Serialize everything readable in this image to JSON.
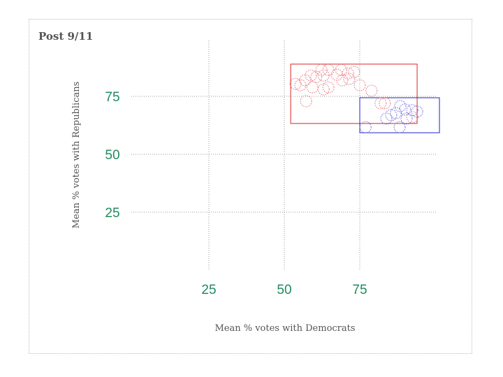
{
  "chart_data": {
    "type": "scatter",
    "title": "Post 9/11",
    "xlabel": "Mean % votes with Democrats",
    "ylabel": "Mean % votes with Republicans",
    "xlim": [
      0,
      100
    ],
    "ylim": [
      0,
      100
    ],
    "xticks": [
      "25",
      "50",
      "75"
    ],
    "xtick_values": [
      25,
      50,
      75
    ],
    "yticks": [
      "75",
      "50",
      "25"
    ],
    "ytick_values": [
      75,
      50,
      25
    ],
    "grid": true,
    "colors": {
      "tick": "#1f8a5e",
      "red": "#e8707a",
      "blue": "#6a6ae0",
      "red_box": "#dd2222",
      "blue_box": "#2222cc",
      "grid": "#999999",
      "text": "#555555"
    },
    "boxes": [
      {
        "name": "red",
        "x": [
          52.1,
          94.0
        ],
        "y": [
          63.3,
          88.9
        ]
      },
      {
        "name": "blue",
        "x": [
          75.0,
          101.4
        ],
        "y": [
          59.3,
          74.4
        ]
      }
    ],
    "series": [
      {
        "name": "red",
        "points": [
          [
            53.7,
            80.4
          ],
          [
            55.3,
            79.8
          ],
          [
            56.9,
            81.9
          ],
          [
            59.3,
            78.9
          ],
          [
            58.8,
            84.0
          ],
          [
            60.6,
            83.4
          ],
          [
            63.0,
            84.0
          ],
          [
            63.0,
            78.0
          ],
          [
            64.6,
            78.9
          ],
          [
            62.3,
            86.4
          ],
          [
            64.6,
            86.4
          ],
          [
            67.4,
            84.3
          ],
          [
            68.8,
            86.4
          ],
          [
            71.1,
            84.9
          ],
          [
            71.5,
            82.5
          ],
          [
            69.2,
            81.9
          ],
          [
            73.1,
            85.5
          ],
          [
            75.0,
            79.8
          ],
          [
            78.9,
            77.4
          ],
          [
            57.2,
            72.9
          ],
          [
            81.9,
            72.0
          ],
          [
            83.3,
            72.0
          ],
          [
            92.4,
            66.0
          ]
        ]
      },
      {
        "name": "blue",
        "points": [
          [
            85.4,
            66.9
          ],
          [
            88.4,
            70.8
          ],
          [
            90.0,
            69.3
          ],
          [
            92.4,
            69.0
          ],
          [
            88.2,
            61.7
          ],
          [
            76.9,
            61.7
          ],
          [
            83.8,
            65.4
          ],
          [
            94.0,
            68.4
          ],
          [
            90.5,
            65.4
          ],
          [
            87.0,
            67.8
          ]
        ]
      }
    ]
  }
}
